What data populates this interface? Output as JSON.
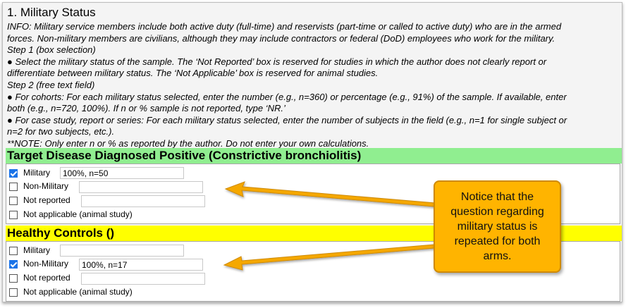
{
  "section": {
    "title": "1. Military Status",
    "info_lines": [
      "INFO: Military service members include both active duty (full-time) and reservists (part-time or called to active duty) who are in the armed",
      "forces. Non-military members are civilians, although they may include contractors or federal (DoD) employees who work for the military.",
      "Step 1 (box selection)",
      "● Select the military status of the sample. The ‘Not Reported’ box is reserved for studies in which the author does not clearly report or",
      "differentiate between military status. The ‘Not Applicable’ box is reserved for animal studies.",
      "Step 2 (free text field)",
      "● For cohorts: For each military status selected, enter the number (e.g., n=360) or percentage (e.g., 91%) of the sample. If available, enter",
      "both (e.g., n=720, 100%). If n or % sample is not reported, type ‘NR.’",
      "● For case study, report or series: For each military status selected, enter the number of subjects in the field (e.g., n=1 for single subject or",
      "n=2 for two subjects, etc.).",
      "**NOTE: Only enter n or % as reported by the author. Do not enter your own calculations."
    ]
  },
  "groups": [
    {
      "header": "Target Disease Diagnosed Positive (Constrictive bronchiolitis)",
      "header_color": "#90ee90",
      "options": [
        {
          "label": "Military",
          "checked": true,
          "value": "100%, n=50"
        },
        {
          "label": "Non-Military",
          "checked": false,
          "value": ""
        },
        {
          "label": "Not reported",
          "checked": false,
          "value": ""
        },
        {
          "label": "Not applicable (animal study)",
          "checked": false,
          "value": null
        }
      ]
    },
    {
      "header": "Healthy Controls ()",
      "header_color": "#ffff00",
      "options": [
        {
          "label": "Military",
          "checked": false,
          "value": ""
        },
        {
          "label": "Non-Military",
          "checked": true,
          "value": "100%, n=17"
        },
        {
          "label": "Not reported",
          "checked": false,
          "value": ""
        },
        {
          "label": "Not applicable (animal study)",
          "checked": false,
          "value": null
        }
      ]
    }
  ],
  "callout": {
    "text": "Notice that the question regarding military status is repeated for both arms.",
    "color": "#ffb400"
  },
  "colors": {
    "checkbox_checked": "#1a73e8",
    "arrow": "#f5a800"
  }
}
